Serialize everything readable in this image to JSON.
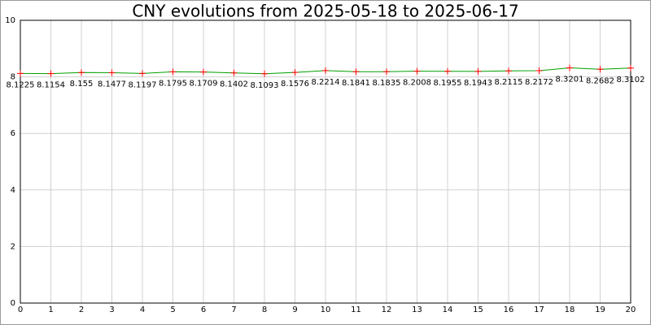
{
  "chart_data": {
    "type": "line",
    "title": "CNY evolutions from 2025-05-18 to 2025-06-17",
    "x": [
      0,
      1,
      2,
      3,
      4,
      5,
      6,
      7,
      8,
      9,
      10,
      11,
      12,
      13,
      14,
      15,
      16,
      17,
      18,
      19,
      20
    ],
    "values": [
      8.1225,
      8.1154,
      8.155,
      8.1477,
      8.1197,
      8.1795,
      8.1709,
      8.1402,
      8.1093,
      8.1576,
      8.2214,
      8.1841,
      8.1835,
      8.2008,
      8.1955,
      8.1943,
      8.2115,
      8.2172,
      8.3201,
      8.2682,
      8.3102
    ],
    "line_color": "#00a000",
    "marker_color": "#ff0000",
    "xlim": [
      0,
      20
    ],
    "xticks": [
      0,
      1,
      2,
      3,
      4,
      5,
      6,
      7,
      8,
      9,
      10,
      11,
      12,
      13,
      14,
      15,
      16,
      17,
      18,
      19,
      20
    ],
    "ylim": [
      0,
      10
    ],
    "yticks": [
      0,
      2,
      4,
      6,
      8,
      10
    ],
    "grid": true
  }
}
